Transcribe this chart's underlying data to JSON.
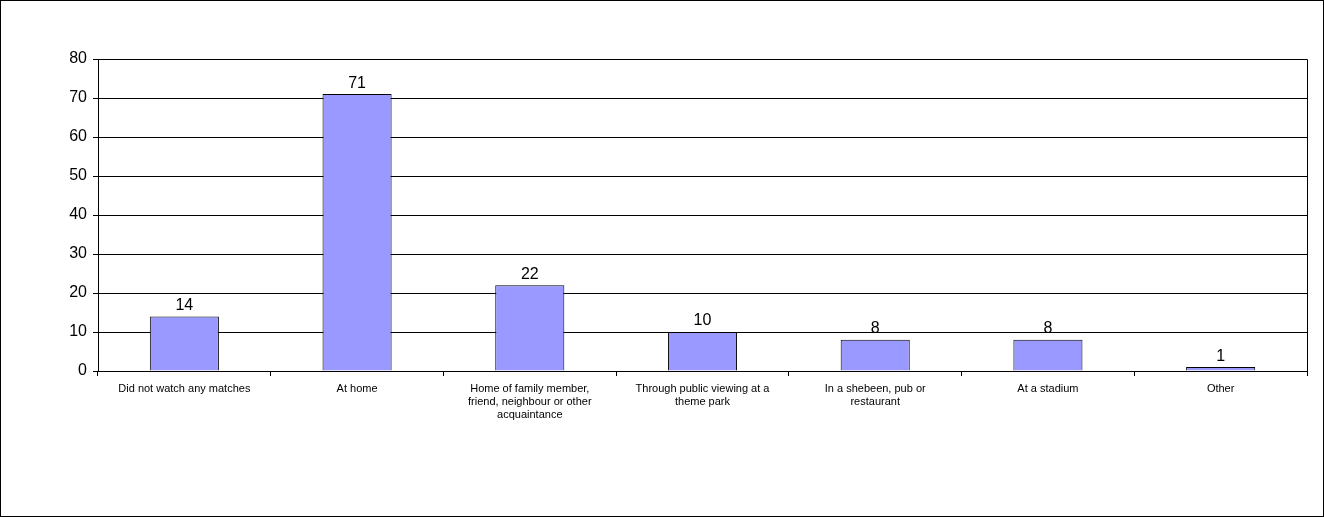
{
  "chart_data": {
    "type": "bar",
    "categories": [
      "Did not watch any matches",
      "At home",
      "Home of family member, friend, neighbour or other acquaintance",
      "Through public viewing at a theme park",
      "In a shebeen, pub or restaurant",
      "At a stadium",
      "Other"
    ],
    "values": [
      14,
      71,
      22,
      10,
      8,
      8,
      1
    ],
    "color": "#9999ff",
    "ylim": [
      0,
      80
    ],
    "yticks": [
      0,
      10,
      20,
      30,
      40,
      50,
      60,
      70,
      80
    ],
    "grid": "y",
    "data_labels": true
  }
}
